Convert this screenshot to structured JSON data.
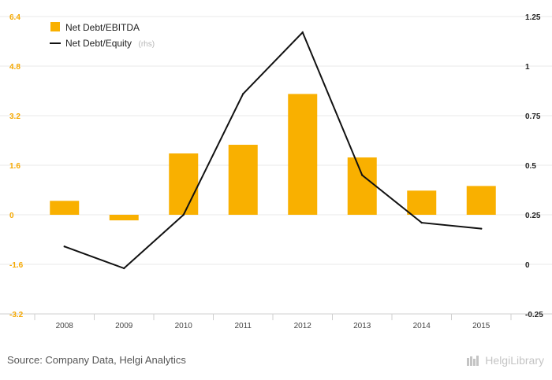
{
  "chart_data": {
    "type": "bar",
    "categories": [
      "2008",
      "2009",
      "2010",
      "2011",
      "2012",
      "2013",
      "2014",
      "2015"
    ],
    "series": [
      {
        "name": "Net Debt/EBITDA",
        "type": "bar",
        "axis": "left",
        "color": "#f9b000",
        "values": [
          0.45,
          -0.18,
          1.98,
          2.26,
          3.9,
          1.85,
          0.78,
          0.93
        ]
      },
      {
        "name": "Net Debt/Equity",
        "suffix": "(rhs)",
        "type": "line",
        "axis": "right",
        "color": "#111111",
        "values": [
          0.09,
          -0.02,
          0.25,
          0.86,
          1.17,
          0.45,
          0.21,
          0.18
        ]
      }
    ],
    "left_axis": {
      "ylim": [
        -3.2,
        6.4
      ],
      "ticks": [
        "6.4",
        "4.8",
        "3.2",
        "1.6",
        "0",
        "-1.6",
        "-3.2"
      ],
      "color": "#f5a800"
    },
    "right_axis": {
      "ylim": [
        -0.25,
        1.25
      ],
      "ticks": [
        "1.25",
        "1",
        "0.75",
        "0.5",
        "0.25",
        "0",
        "-0.25"
      ],
      "color": "#222222"
    },
    "legend": "top-left",
    "grid": true
  },
  "footer": {
    "source": "Source: Company Data, Helgi Analytics",
    "brand": "HelgiLibrary"
  }
}
